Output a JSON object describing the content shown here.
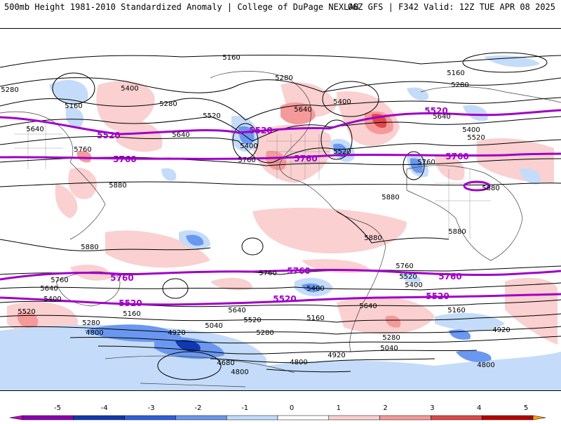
{
  "header": {
    "title": "500mb Height 1981-2010 Standardized Anomaly | College of DuPage NEXLAB",
    "run": "06Z GFS | F342 Valid: 12Z TUE APR 08 2025"
  },
  "map": {
    "contour_labels": {
      "c5160": "5160",
      "c5280": "5280",
      "c5400": "5400",
      "c5520": "5520",
      "c5640": "5640",
      "c5760": "5760",
      "c5880": "5880",
      "c5040": "5040",
      "c4920": "4920",
      "c4800": "4800",
      "c4680": "4680"
    },
    "highlight_color": "#a000c8"
  },
  "colorbar": {
    "ticks": [
      "-5",
      "-4",
      "-3",
      "-2",
      "-1",
      "0",
      "1",
      "2",
      "3",
      "4",
      "5"
    ],
    "colors": [
      "#c000c0",
      "#8a00b0",
      "#1038b0",
      "#2e5fe0",
      "#6a98f0",
      "#c4dcfa",
      "#ffffff",
      "#fad0d0",
      "#f59a9a",
      "#e04848",
      "#b80000",
      "#ffa000"
    ]
  }
}
